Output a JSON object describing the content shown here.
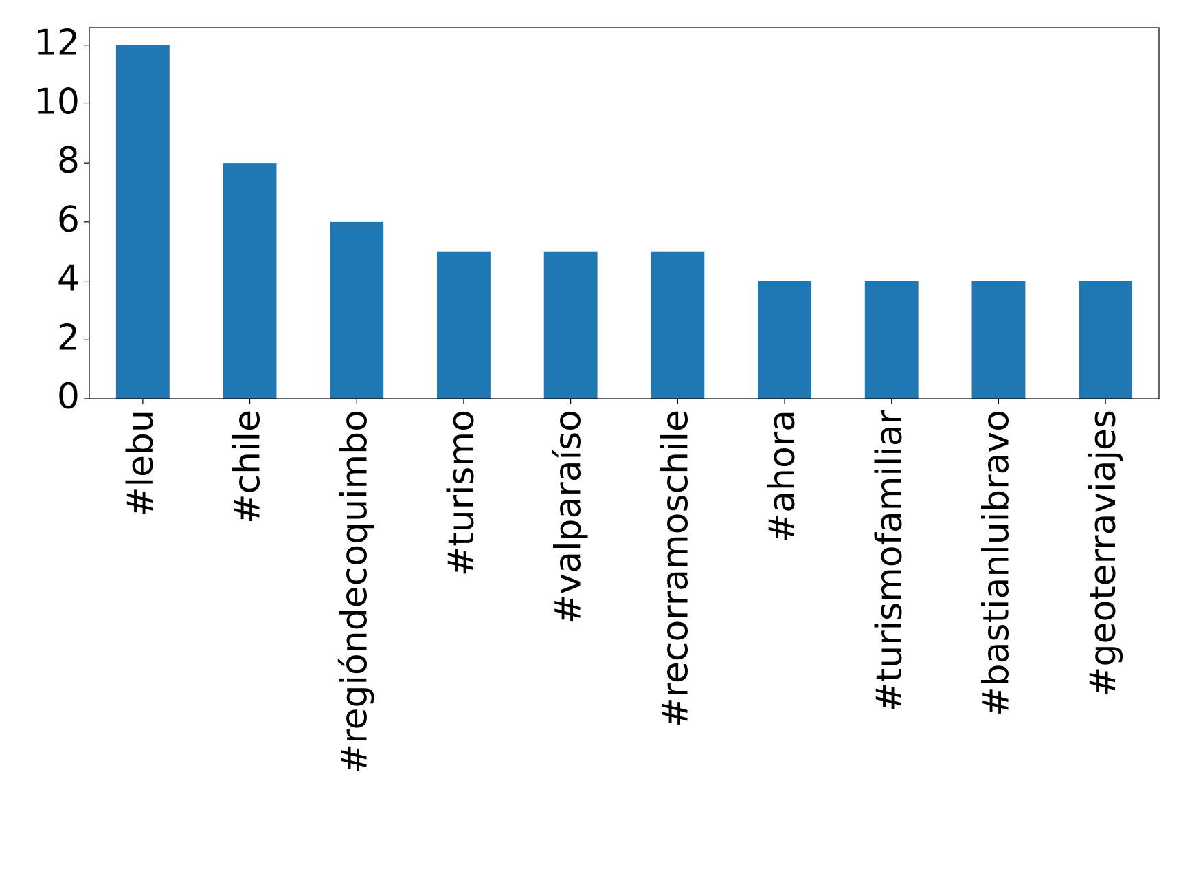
{
  "chart_data": {
    "type": "bar",
    "categories": [
      "#lebu",
      "#chile",
      "#regióndecoquimbo",
      "#turismo",
      "#valparaíso",
      "#recorramoschile",
      "#ahora",
      "#turismofamiliar",
      "#bastianluibravo",
      "#geoterraviajes"
    ],
    "values": [
      12,
      8,
      6,
      5,
      5,
      5,
      4,
      4,
      4,
      4
    ],
    "color": "#1f77b4",
    "ylim": [
      0,
      12.6
    ],
    "yticks": [
      0,
      2,
      4,
      6,
      8,
      10,
      12
    ],
    "grid": false
  }
}
